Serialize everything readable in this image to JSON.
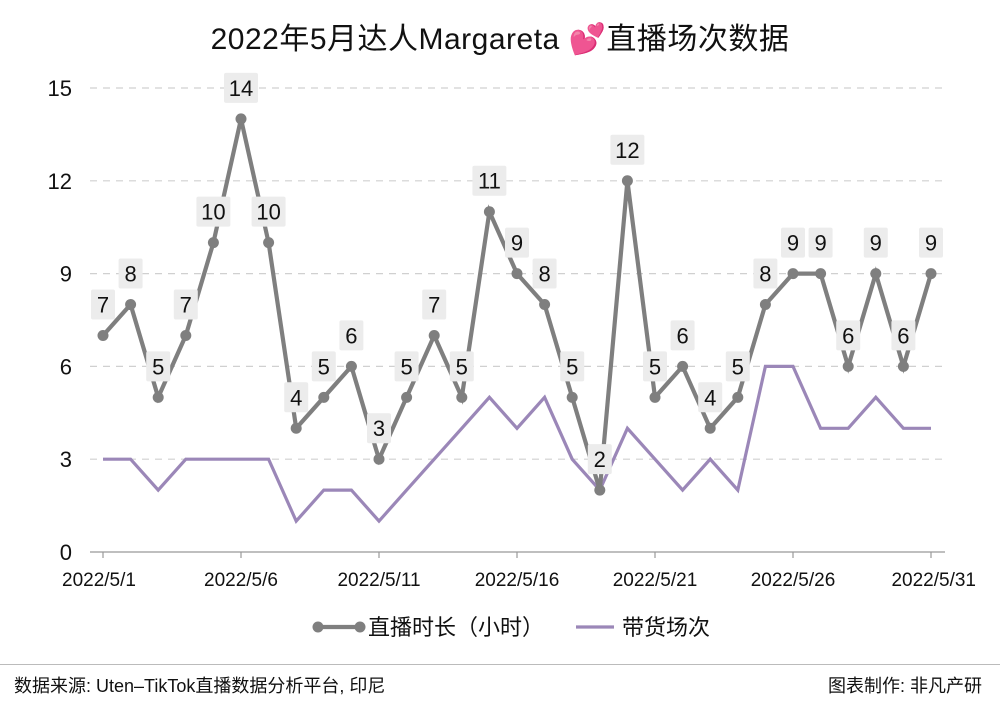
{
  "title": "2022年5月达人Margareta 💕直播场次数据",
  "footer": {
    "source": "数据来源: Uten–TikTok直播数据分析平台, 印尼",
    "credit": "图表制作: 非凡产研"
  },
  "colors": {
    "hours_line": "#7f7f7f",
    "sessions_line": "#9b87b8",
    "grid": "#d0d0d0",
    "label_bg": "#ececec"
  },
  "chart_data": {
    "type": "line",
    "x": [
      "2022/5/1",
      "2022/5/2",
      "2022/5/3",
      "2022/5/4",
      "2022/5/5",
      "2022/5/6",
      "2022/5/7",
      "2022/5/8",
      "2022/5/9",
      "2022/5/10",
      "2022/5/11",
      "2022/5/12",
      "2022/5/13",
      "2022/5/14",
      "2022/5/15",
      "2022/5/16",
      "2022/5/17",
      "2022/5/18",
      "2022/5/19",
      "2022/5/20",
      "2022/5/21",
      "2022/5/22",
      "2022/5/23",
      "2022/5/24",
      "2022/5/25",
      "2022/5/26",
      "2022/5/27",
      "2022/5/28",
      "2022/5/29",
      "2022/5/30",
      "2022/5/31"
    ],
    "x_tick_labels": [
      "2022/5/1",
      "2022/5/6",
      "2022/5/11",
      "2022/5/16",
      "2022/5/21",
      "2022/5/26",
      "2022/5/31"
    ],
    "ylim": [
      0,
      15
    ],
    "y_ticks": [
      0,
      3,
      6,
      9,
      12,
      15
    ],
    "grid": "horizontal dashed",
    "legend_position": "bottom",
    "series": [
      {
        "name": "直播时长（小时）",
        "marker": "circle",
        "data_labels": true,
        "values": [
          7,
          8,
          5,
          7,
          10,
          14,
          10,
          4,
          5,
          6,
          3,
          5,
          7,
          5,
          11,
          9,
          8,
          5,
          2,
          12,
          5,
          6,
          4,
          5,
          8,
          9,
          9,
          6,
          9,
          6,
          9
        ]
      },
      {
        "name": "带货场次",
        "marker": "none",
        "data_labels": false,
        "values": [
          3,
          3,
          2,
          3,
          3,
          3,
          3,
          1,
          2,
          2,
          1,
          2,
          3,
          4,
          5,
          4,
          5,
          3,
          2,
          4,
          3,
          2,
          3,
          2,
          6,
          6,
          4,
          4,
          5,
          4,
          4
        ]
      }
    ]
  }
}
